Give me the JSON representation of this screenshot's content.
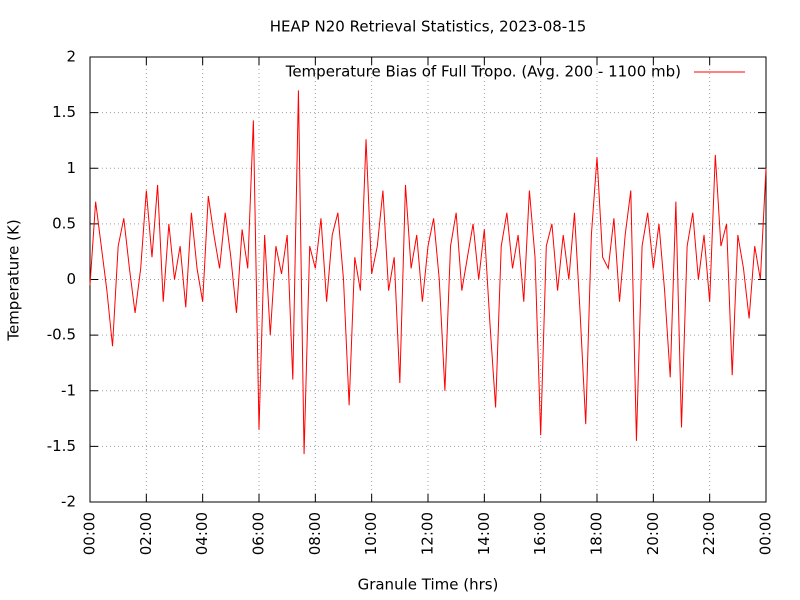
{
  "chart_data": {
    "type": "line",
    "title": "HEAP N20 Retrieval Statistics, 2023-08-15",
    "x_label": "Granule Time (hrs)",
    "y_label": "Temperature (K)",
    "x": [
      0,
      0.2,
      0.4,
      0.6,
      0.8,
      1,
      1.2,
      1.4,
      1.6,
      1.8,
      2,
      2.2,
      2.4,
      2.6,
      2.8,
      3,
      3.2,
      3.4,
      3.6,
      3.8,
      4,
      4.2,
      4.4,
      4.6,
      4.8,
      5,
      5.2,
      5.4,
      5.6,
      5.8,
      6,
      6.2,
      6.4,
      6.6,
      6.8,
      7,
      7.2,
      7.4,
      7.6,
      7.8,
      8,
      8.2,
      8.4,
      8.6,
      8.8,
      9,
      9.2,
      9.4,
      9.6,
      9.8,
      10,
      10.2,
      10.4,
      10.6,
      10.8,
      11,
      11.2,
      11.4,
      11.6,
      11.8,
      12,
      12.2,
      12.4,
      12.6,
      12.8,
      13,
      13.2,
      13.4,
      13.6,
      13.8,
      14,
      14.2,
      14.4,
      14.6,
      14.8,
      15,
      15.2,
      15.4,
      15.6,
      15.8,
      16,
      16.2,
      16.4,
      16.6,
      16.8,
      17,
      17.2,
      17.4,
      17.6,
      17.8,
      18,
      18.2,
      18.4,
      18.6,
      18.8,
      19,
      19.2,
      19.4,
      19.6,
      19.8,
      20,
      20.2,
      20.4,
      20.6,
      20.8,
      21,
      21.2,
      21.4,
      21.6,
      21.8,
      22,
      22.2,
      22.4,
      22.6,
      22.8,
      23,
      23.2,
      23.4,
      23.6,
      23.8,
      24
    ],
    "series": [
      {
        "name": "Temperature Bias of Full Tropo. (Avg. 200 - 1100 mb)",
        "color": "#ff0000",
        "values": [
          -0.05,
          0.7,
          0.3,
          -0.1,
          -0.6,
          0.3,
          0.55,
          0.1,
          -0.3,
          0.1,
          0.8,
          0.2,
          0.85,
          -0.2,
          0.5,
          0,
          0.3,
          -0.25,
          0.6,
          0.1,
          -0.2,
          0.75,
          0.4,
          0.1,
          0.6,
          0.2,
          -0.3,
          0.45,
          0.1,
          1.43,
          -1.35,
          0.4,
          -0.5,
          0.3,
          0.05,
          0.4,
          -0.9,
          1.7,
          -1.57,
          0.3,
          0.1,
          0.55,
          -0.2,
          0.4,
          0.6,
          0,
          -1.13,
          0.2,
          -0.1,
          1.26,
          0.05,
          0.3,
          0.8,
          -0.1,
          0.2,
          -0.93,
          0.85,
          0.1,
          0.4,
          -0.2,
          0.3,
          0.55,
          0,
          -1,
          0.3,
          0.6,
          -0.1,
          0.2,
          0.5,
          0,
          0.45,
          -0.4,
          -1.15,
          0.3,
          0.6,
          0.1,
          0.4,
          -0.2,
          0.8,
          0.2,
          -1.4,
          0.3,
          0.5,
          -0.1,
          0.4,
          0,
          0.6,
          -0.3,
          -1.3,
          0.4,
          1.1,
          0.2,
          0.1,
          0.55,
          -0.2,
          0.4,
          0.8,
          -1.45,
          0.3,
          0.6,
          0.1,
          0.5,
          -0.1,
          -0.88,
          0.7,
          -1.33,
          0.3,
          0.6,
          0,
          0.4,
          -0.2,
          1.12,
          0.3,
          0.5,
          -0.86,
          0.4,
          0.1,
          -0.35,
          0.3,
          0,
          1
        ]
      }
    ],
    "xlim": [
      0,
      24
    ],
    "xticks": [
      {
        "value": 0,
        "label": "00:00"
      },
      {
        "value": 2,
        "label": "02:00"
      },
      {
        "value": 4,
        "label": "04:00"
      },
      {
        "value": 6,
        "label": "06:00"
      },
      {
        "value": 8,
        "label": "08:00"
      },
      {
        "value": 10,
        "label": "10:00"
      },
      {
        "value": 12,
        "label": "12:00"
      },
      {
        "value": 14,
        "label": "14:00"
      },
      {
        "value": 16,
        "label": "16:00"
      },
      {
        "value": 18,
        "label": "18:00"
      },
      {
        "value": 20,
        "label": "20:00"
      },
      {
        "value": 22,
        "label": "22:00"
      },
      {
        "value": 24,
        "label": "00:00"
      }
    ],
    "ylim": [
      -2,
      2
    ],
    "yticks": [
      -2,
      -1.5,
      -1,
      -0.5,
      0,
      0.5,
      1,
      1.5,
      2
    ],
    "grid": true,
    "legend": "top-right"
  }
}
